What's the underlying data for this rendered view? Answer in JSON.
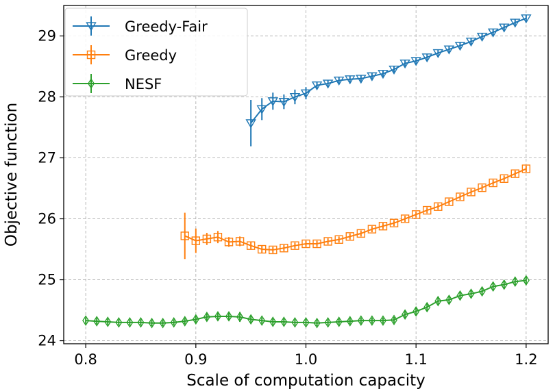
{
  "chart_data": {
    "type": "line",
    "xlabel": "Scale of computation capacity",
    "ylabel": "Objective function",
    "xlim": [
      0.78,
      1.22
    ],
    "ylim": [
      23.95,
      29.5
    ],
    "xticks": [
      0.8,
      0.9,
      1.0,
      1.1,
      1.2
    ],
    "xtick_labels": [
      "0.8",
      "0.9",
      "1.0",
      "1.1",
      "1.2"
    ],
    "yticks": [
      24,
      25,
      26,
      27,
      28,
      29
    ],
    "ytick_labels": [
      "24",
      "25",
      "26",
      "27",
      "28",
      "29"
    ],
    "grid": true,
    "legend_position": "top-left",
    "series": [
      {
        "name": "Greedy-Fair",
        "color": "#1f77b4",
        "marker": "triangle-down",
        "x": [
          0.95,
          0.96,
          0.97,
          0.98,
          0.99,
          1.0,
          1.01,
          1.02,
          1.03,
          1.04,
          1.05,
          1.06,
          1.07,
          1.08,
          1.09,
          1.1,
          1.11,
          1.12,
          1.13,
          1.14,
          1.15,
          1.16,
          1.17,
          1.18,
          1.19,
          1.2
        ],
        "y": [
          27.57,
          27.8,
          27.93,
          27.92,
          28.0,
          28.06,
          28.19,
          28.22,
          28.27,
          28.29,
          28.3,
          28.34,
          28.38,
          28.45,
          28.55,
          28.59,
          28.65,
          28.72,
          28.78,
          28.84,
          28.91,
          28.99,
          29.06,
          29.14,
          29.22,
          29.29
        ],
        "err": [
          0.38,
          0.18,
          0.14,
          0.12,
          0.12,
          0.1,
          0.06,
          0.06,
          0.05,
          0.05,
          0.05,
          0.05,
          0.05,
          0.05,
          0.05,
          0.05,
          0.05,
          0.05,
          0.05,
          0.05,
          0.05,
          0.05,
          0.05,
          0.05,
          0.05,
          0.05
        ]
      },
      {
        "name": "Greedy",
        "color": "#ff7f0e",
        "marker": "square",
        "x": [
          0.89,
          0.9,
          0.91,
          0.92,
          0.93,
          0.94,
          0.95,
          0.96,
          0.97,
          0.98,
          0.99,
          1.0,
          1.01,
          1.02,
          1.03,
          1.04,
          1.05,
          1.06,
          1.07,
          1.08,
          1.09,
          1.1,
          1.11,
          1.12,
          1.13,
          1.14,
          1.15,
          1.16,
          1.17,
          1.18,
          1.19,
          1.2
        ],
        "y": [
          25.72,
          25.64,
          25.67,
          25.7,
          25.62,
          25.63,
          25.56,
          25.5,
          25.49,
          25.52,
          25.56,
          25.59,
          25.59,
          25.63,
          25.66,
          25.71,
          25.76,
          25.83,
          25.88,
          25.93,
          26.0,
          26.07,
          26.14,
          26.2,
          26.28,
          26.36,
          26.44,
          26.51,
          26.59,
          26.66,
          26.74,
          26.82
        ],
        "err": [
          0.38,
          0.2,
          0.1,
          0.1,
          0.08,
          0.08,
          0.06,
          0.06,
          0.05,
          0.05,
          0.05,
          0.05,
          0.05,
          0.05,
          0.05,
          0.05,
          0.05,
          0.05,
          0.05,
          0.05,
          0.05,
          0.05,
          0.05,
          0.05,
          0.05,
          0.05,
          0.05,
          0.05,
          0.05,
          0.05,
          0.05,
          0.05
        ]
      },
      {
        "name": "NESF",
        "color": "#2ca02c",
        "marker": "thin-diamond",
        "x": [
          0.8,
          0.81,
          0.82,
          0.83,
          0.84,
          0.85,
          0.86,
          0.87,
          0.88,
          0.89,
          0.9,
          0.91,
          0.92,
          0.93,
          0.94,
          0.95,
          0.96,
          0.97,
          0.98,
          0.99,
          1.0,
          1.01,
          1.02,
          1.03,
          1.04,
          1.05,
          1.06,
          1.07,
          1.08,
          1.09,
          1.1,
          1.11,
          1.12,
          1.13,
          1.14,
          1.15,
          1.16,
          1.17,
          1.18,
          1.19,
          1.2
        ],
        "y": [
          24.33,
          24.32,
          24.31,
          24.3,
          24.3,
          24.3,
          24.29,
          24.29,
          24.3,
          24.32,
          24.35,
          24.39,
          24.4,
          24.4,
          24.39,
          24.35,
          24.33,
          24.31,
          24.31,
          24.3,
          24.3,
          24.29,
          24.3,
          24.31,
          24.32,
          24.33,
          24.33,
          24.33,
          24.34,
          24.43,
          24.48,
          24.55,
          24.65,
          24.67,
          24.74,
          24.77,
          24.81,
          24.89,
          24.92,
          24.97,
          24.99
        ],
        "err": [
          0.05,
          0.05,
          0.05,
          0.05,
          0.05,
          0.05,
          0.05,
          0.05,
          0.05,
          0.05,
          0.06,
          0.06,
          0.06,
          0.06,
          0.08,
          0.06,
          0.05,
          0.05,
          0.05,
          0.05,
          0.05,
          0.05,
          0.05,
          0.05,
          0.05,
          0.05,
          0.05,
          0.05,
          0.05,
          0.07,
          0.07,
          0.07,
          0.07,
          0.06,
          0.06,
          0.06,
          0.06,
          0.07,
          0.07,
          0.07,
          0.07
        ]
      }
    ]
  }
}
